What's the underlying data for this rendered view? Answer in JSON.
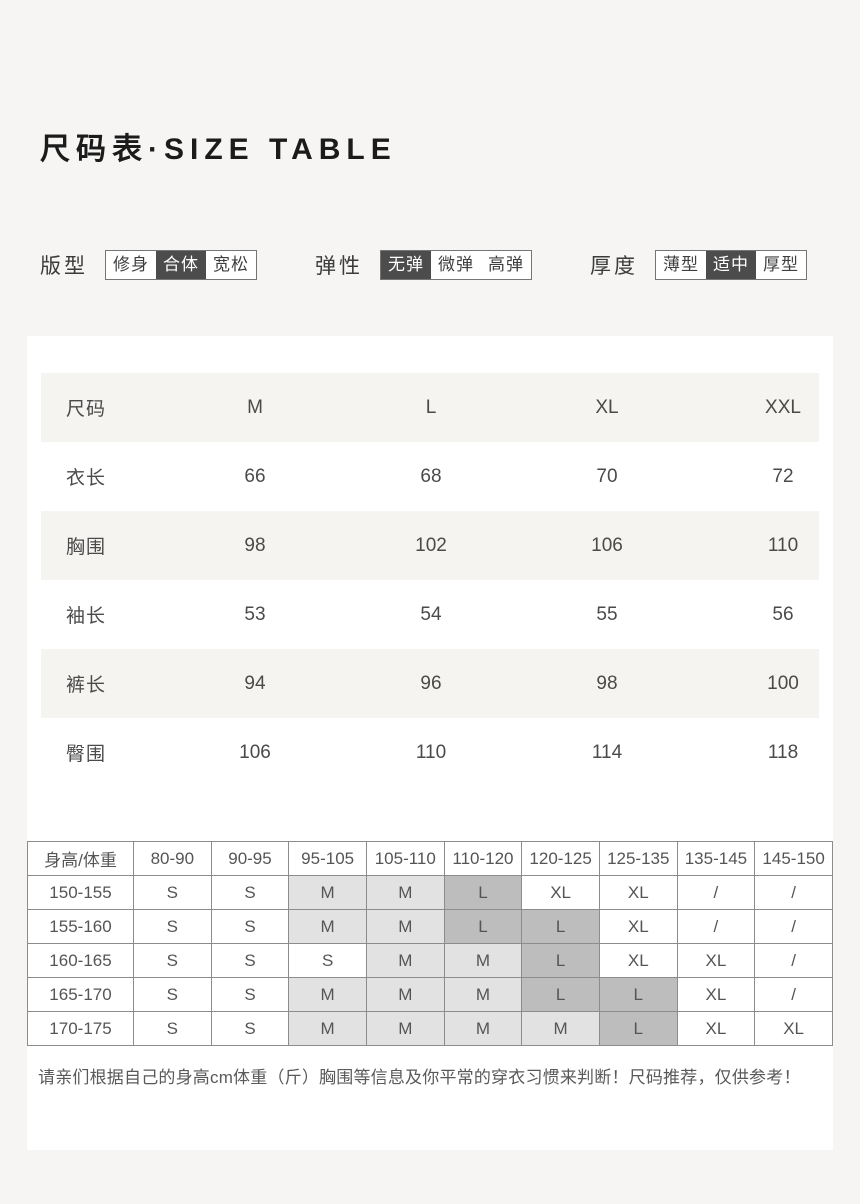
{
  "page": {
    "title": "尺码表·SIZE TABLE"
  },
  "attributes": [
    {
      "label": "版型",
      "options": [
        {
          "text": "修身",
          "selected": false
        },
        {
          "text": "合体",
          "selected": true
        },
        {
          "text": "宽松",
          "selected": false
        }
      ]
    },
    {
      "label": "弹性",
      "options": [
        {
          "text": "无弹",
          "selected": true
        },
        {
          "text": "微弹",
          "selected": false
        },
        {
          "text": "高弹",
          "selected": false
        }
      ]
    },
    {
      "label": "厚度",
      "options": [
        {
          "text": "薄型",
          "selected": false
        },
        {
          "text": "适中",
          "selected": true
        },
        {
          "text": "厚型",
          "selected": false
        }
      ]
    }
  ],
  "size_table": {
    "header": {
      "label": "尺码",
      "values": [
        "M",
        "L",
        "XL",
        "XXL"
      ]
    },
    "rows": [
      {
        "label": "衣长",
        "values": [
          "66",
          "68",
          "70",
          "72"
        ]
      },
      {
        "label": "胸围",
        "values": [
          "98",
          "102",
          "106",
          "110"
        ]
      },
      {
        "label": "袖长",
        "values": [
          "53",
          "54",
          "55",
          "56"
        ]
      },
      {
        "label": "裤长",
        "values": [
          "94",
          "96",
          "98",
          "100"
        ]
      },
      {
        "label": "臀围",
        "values": [
          "106",
          "110",
          "114",
          "118"
        ]
      }
    ]
  },
  "fit_table": {
    "corner": "身高/体重",
    "weight_headers": [
      "80-90",
      "90-95",
      "95-105",
      "105-110",
      "110-120",
      "120-125",
      "125-135",
      "135-145",
      "145-150"
    ],
    "rows": [
      {
        "height": "150-155",
        "cells": [
          {
            "v": "S",
            "hl": "none"
          },
          {
            "v": "S",
            "hl": "none"
          },
          {
            "v": "M",
            "hl": "light"
          },
          {
            "v": "M",
            "hl": "light"
          },
          {
            "v": "L",
            "hl": "dark"
          },
          {
            "v": "XL",
            "hl": "none"
          },
          {
            "v": "XL",
            "hl": "none"
          },
          {
            "v": "/",
            "hl": "none"
          },
          {
            "v": "/",
            "hl": "none"
          }
        ]
      },
      {
        "height": "155-160",
        "cells": [
          {
            "v": "S",
            "hl": "none"
          },
          {
            "v": "S",
            "hl": "none"
          },
          {
            "v": "M",
            "hl": "light"
          },
          {
            "v": "M",
            "hl": "light"
          },
          {
            "v": "L",
            "hl": "dark"
          },
          {
            "v": "L",
            "hl": "dark"
          },
          {
            "v": "XL",
            "hl": "none"
          },
          {
            "v": "/",
            "hl": "none"
          },
          {
            "v": "/",
            "hl": "none"
          }
        ]
      },
      {
        "height": "160-165",
        "cells": [
          {
            "v": "S",
            "hl": "none"
          },
          {
            "v": "S",
            "hl": "none"
          },
          {
            "v": "S",
            "hl": "none"
          },
          {
            "v": "M",
            "hl": "light"
          },
          {
            "v": "M",
            "hl": "light"
          },
          {
            "v": "L",
            "hl": "dark"
          },
          {
            "v": "XL",
            "hl": "none"
          },
          {
            "v": "XL",
            "hl": "none"
          },
          {
            "v": "/",
            "hl": "none"
          }
        ]
      },
      {
        "height": "165-170",
        "cells": [
          {
            "v": "S",
            "hl": "none"
          },
          {
            "v": "S",
            "hl": "none"
          },
          {
            "v": "M",
            "hl": "light"
          },
          {
            "v": "M",
            "hl": "light"
          },
          {
            "v": "M",
            "hl": "light"
          },
          {
            "v": "L",
            "hl": "dark"
          },
          {
            "v": "L",
            "hl": "dark"
          },
          {
            "v": "XL",
            "hl": "none"
          },
          {
            "v": "/",
            "hl": "none"
          }
        ]
      },
      {
        "height": "170-175",
        "cells": [
          {
            "v": "S",
            "hl": "none"
          },
          {
            "v": "S",
            "hl": "none"
          },
          {
            "v": "M",
            "hl": "light"
          },
          {
            "v": "M",
            "hl": "light"
          },
          {
            "v": "M",
            "hl": "light"
          },
          {
            "v": "M",
            "hl": "light"
          },
          {
            "v": "L",
            "hl": "dark"
          },
          {
            "v": "XL",
            "hl": "none"
          },
          {
            "v": "XL",
            "hl": "none"
          }
        ]
      }
    ]
  },
  "note": "请亲们根据自己的身高cm体重（斤）胸围等信息及你平常的穿衣习惯来判断！尺码推荐，仅供参考！",
  "colors": {
    "page_background": "#f6f5f4",
    "card_background": "#ffffff",
    "selected_chip": "#4c4c4c",
    "row_stripe": "#f5f4f1",
    "grid_border": "#8c8c8c",
    "highlight_light": "#e2e2e2",
    "highlight_dark": "#bdbdbd"
  }
}
